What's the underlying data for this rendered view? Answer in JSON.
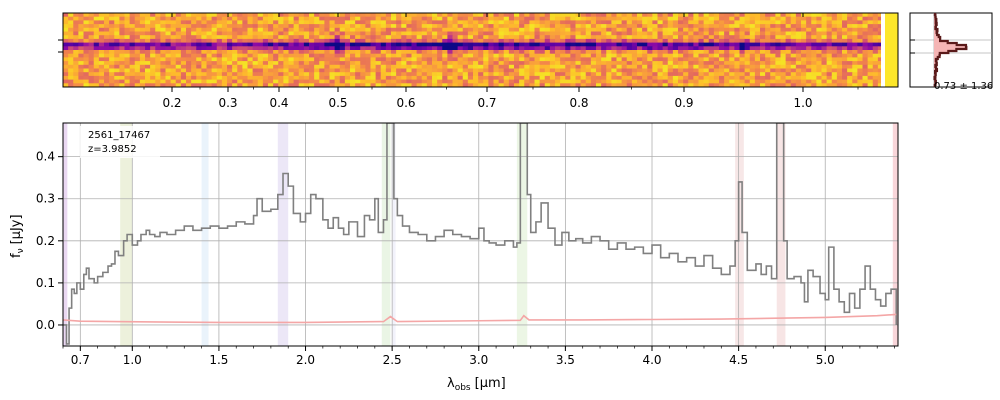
{
  "chart_data": [
    {
      "type": "heatmap",
      "panel": "2d-spectrum",
      "colormap": "plasma",
      "x_tick_labels": [
        "0.2",
        "0.3",
        "0.4",
        "0.5",
        "0.6",
        "0.7",
        "0.8",
        "0.9",
        "1.0"
      ],
      "x_tick_values": [
        0.2,
        0.3,
        0.4,
        0.5,
        0.6,
        0.7,
        0.8,
        0.9,
        1.0
      ],
      "trace_features_um": [
        0.5,
        0.655,
        0.95
      ]
    },
    {
      "type": "line",
      "panel": "spatial-profile",
      "annotation": "0.73 ± 1.36",
      "line_color": "#5a1a1a",
      "fill_color": "#f5b5b5"
    },
    {
      "type": "line",
      "panel": "1d-spectrum",
      "label_id": "2561_17467",
      "label_z": "z=3.9852",
      "xlabel_main": "λ",
      "xlabel_sub": "obs",
      "xlabel_unit": "[μm]",
      "ylabel_main": "f",
      "ylabel_sub": "ν",
      "ylabel_unit": "[μJy]",
      "xlim": [
        0.6,
        5.42
      ],
      "ylim": [
        -0.05,
        0.48
      ],
      "x_ticks": [
        0.7,
        1.0,
        1.5,
        2.0,
        2.5,
        3.0,
        3.5,
        4.0,
        4.5,
        5.0
      ],
      "x_tick_labels": [
        "0.7",
        "1.0",
        "1.5",
        "2.0",
        "2.5",
        "3.0",
        "3.5",
        "4.0",
        "4.5",
        "5.0"
      ],
      "y_ticks": [
        0.0,
        0.1,
        0.2,
        0.3,
        0.4
      ],
      "y_tick_labels": [
        "0.0",
        "0.1",
        "0.2",
        "0.3",
        "0.4"
      ],
      "grid": true,
      "series": [
        {
          "role": "flux",
          "color": "#808080",
          "points": [
            [
              0.6,
              0.0
            ],
            [
              0.62,
              -0.045
            ],
            [
              0.635,
              0.04
            ],
            [
              0.65,
              0.085
            ],
            [
              0.665,
              0.075
            ],
            [
              0.68,
              0.1
            ],
            [
              0.7,
              0.085
            ],
            [
              0.72,
              0.12
            ],
            [
              0.735,
              0.135
            ],
            [
              0.75,
              0.11
            ],
            [
              0.78,
              0.1
            ],
            [
              0.8,
              0.115
            ],
            [
              0.83,
              0.125
            ],
            [
              0.86,
              0.14
            ],
            [
              0.88,
              0.145
            ],
            [
              0.9,
              0.175
            ],
            [
              0.92,
              0.165
            ],
            [
              0.95,
              0.2
            ],
            [
              0.97,
              0.215
            ],
            [
              1.0,
              0.19
            ],
            [
              1.03,
              0.2
            ],
            [
              1.05,
              0.215
            ],
            [
              1.08,
              0.225
            ],
            [
              1.1,
              0.215
            ],
            [
              1.13,
              0.21
            ],
            [
              1.16,
              0.22
            ],
            [
              1.2,
              0.215
            ],
            [
              1.25,
              0.225
            ],
            [
              1.3,
              0.235
            ],
            [
              1.35,
              0.225
            ],
            [
              1.4,
              0.23
            ],
            [
              1.45,
              0.235
            ],
            [
              1.5,
              0.23
            ],
            [
              1.55,
              0.235
            ],
            [
              1.6,
              0.245
            ],
            [
              1.65,
              0.24
            ],
            [
              1.7,
              0.26
            ],
            [
              1.72,
              0.3
            ],
            [
              1.75,
              0.27
            ],
            [
              1.8,
              0.275
            ],
            [
              1.84,
              0.31
            ],
            [
              1.87,
              0.36
            ],
            [
              1.9,
              0.33
            ],
            [
              1.93,
              0.265
            ],
            [
              1.97,
              0.245
            ],
            [
              2.0,
              0.265
            ],
            [
              2.03,
              0.31
            ],
            [
              2.06,
              0.3
            ],
            [
              2.1,
              0.25
            ],
            [
              2.13,
              0.23
            ],
            [
              2.16,
              0.255
            ],
            [
              2.19,
              0.23
            ],
            [
              2.22,
              0.215
            ],
            [
              2.25,
              0.245
            ],
            [
              2.3,
              0.21
            ],
            [
              2.34,
              0.26
            ],
            [
              2.37,
              0.25
            ],
            [
              2.4,
              0.3
            ],
            [
              2.42,
              0.22
            ],
            [
              2.45,
              0.25
            ],
            [
              2.47,
              0.48
            ],
            [
              2.49,
              0.48
            ],
            [
              2.51,
              0.3
            ],
            [
              2.53,
              0.26
            ],
            [
              2.56,
              0.235
            ],
            [
              2.6,
              0.22
            ],
            [
              2.65,
              0.215
            ],
            [
              2.7,
              0.2
            ],
            [
              2.75,
              0.21
            ],
            [
              2.8,
              0.225
            ],
            [
              2.85,
              0.215
            ],
            [
              2.9,
              0.21
            ],
            [
              2.95,
              0.205
            ],
            [
              3.0,
              0.23
            ],
            [
              3.03,
              0.2
            ],
            [
              3.06,
              0.195
            ],
            [
              3.1,
              0.19
            ],
            [
              3.15,
              0.2
            ],
            [
              3.2,
              0.185
            ],
            [
              3.22,
              0.195
            ],
            [
              3.24,
              0.48
            ],
            [
              3.26,
              0.48
            ],
            [
              3.28,
              0.31
            ],
            [
              3.3,
              0.22
            ],
            [
              3.33,
              0.245
            ],
            [
              3.36,
              0.29
            ],
            [
              3.4,
              0.23
            ],
            [
              3.44,
              0.19
            ],
            [
              3.48,
              0.22
            ],
            [
              3.52,
              0.2
            ],
            [
              3.56,
              0.205
            ],
            [
              3.6,
              0.195
            ],
            [
              3.65,
              0.21
            ],
            [
              3.7,
              0.2
            ],
            [
              3.75,
              0.18
            ],
            [
              3.8,
              0.195
            ],
            [
              3.85,
              0.18
            ],
            [
              3.9,
              0.185
            ],
            [
              3.95,
              0.17
            ],
            [
              4.0,
              0.19
            ],
            [
              4.05,
              0.16
            ],
            [
              4.1,
              0.17
            ],
            [
              4.15,
              0.15
            ],
            [
              4.2,
              0.16
            ],
            [
              4.25,
              0.14
            ],
            [
              4.3,
              0.165
            ],
            [
              4.35,
              0.135
            ],
            [
              4.4,
              0.12
            ],
            [
              4.45,
              0.14
            ],
            [
              4.48,
              0.2
            ],
            [
              4.5,
              0.34
            ],
            [
              4.52,
              0.22
            ],
            [
              4.55,
              0.13
            ],
            [
              4.6,
              0.145
            ],
            [
              4.63,
              0.12
            ],
            [
              4.66,
              0.14
            ],
            [
              4.69,
              0.11
            ],
            [
              4.72,
              0.48
            ],
            [
              4.74,
              0.48
            ],
            [
              4.76,
              0.2
            ],
            [
              4.78,
              0.11
            ],
            [
              4.82,
              0.115
            ],
            [
              4.86,
              0.1
            ],
            [
              4.88,
              0.055
            ],
            [
              4.9,
              0.13
            ],
            [
              4.93,
              0.115
            ],
            [
              4.97,
              0.075
            ],
            [
              5.0,
              0.06
            ],
            [
              5.02,
              0.185
            ],
            [
              5.05,
              0.085
            ],
            [
              5.08,
              0.055
            ],
            [
              5.11,
              0.03
            ],
            [
              5.14,
              0.075
            ],
            [
              5.17,
              0.04
            ],
            [
              5.2,
              0.085
            ],
            [
              5.23,
              0.14
            ],
            [
              5.26,
              0.085
            ],
            [
              5.29,
              0.06
            ],
            [
              5.32,
              0.045
            ],
            [
              5.35,
              0.075
            ],
            [
              5.38,
              0.085
            ],
            [
              5.41,
              0.0
            ]
          ]
        },
        {
          "role": "error",
          "color": "#f4a6a6",
          "points": [
            [
              0.6,
              0.012
            ],
            [
              0.7,
              0.009
            ],
            [
              0.9,
              0.008
            ],
            [
              1.2,
              0.007
            ],
            [
              1.5,
              0.006
            ],
            [
              2.0,
              0.006
            ],
            [
              2.45,
              0.008
            ],
            [
              2.49,
              0.02
            ],
            [
              2.53,
              0.008
            ],
            [
              3.0,
              0.01
            ],
            [
              3.24,
              0.011
            ],
            [
              3.26,
              0.022
            ],
            [
              3.29,
              0.012
            ],
            [
              3.6,
              0.012
            ],
            [
              4.0,
              0.013
            ],
            [
              4.4,
              0.014
            ],
            [
              4.72,
              0.016
            ],
            [
              5.0,
              0.018
            ],
            [
              5.3,
              0.022
            ],
            [
              5.41,
              0.025
            ]
          ]
        }
      ],
      "bands": [
        {
          "x0": 0.6,
          "x1": 0.625,
          "color": "#d8b8e8"
        },
        {
          "x0": 0.93,
          "x1": 1.0,
          "color": "#dfe6c0"
        },
        {
          "x0": 1.4,
          "x1": 1.44,
          "color": "#d8eaf8"
        },
        {
          "x0": 1.84,
          "x1": 1.9,
          "color": "#dcd4f0"
        },
        {
          "x0": 2.44,
          "x1": 2.49,
          "color": "#d8ecd0"
        },
        {
          "x0": 2.5,
          "x1": 2.52,
          "color": "#e8e8f8"
        },
        {
          "x0": 3.22,
          "x1": 3.28,
          "color": "#dceed0"
        },
        {
          "x0": 4.48,
          "x1": 4.53,
          "color": "#f0d4d4"
        },
        {
          "x0": 4.72,
          "x1": 4.77,
          "color": "#f0d0d0"
        },
        {
          "x0": 5.39,
          "x1": 5.42,
          "color": "#f4b4bc"
        }
      ]
    }
  ]
}
